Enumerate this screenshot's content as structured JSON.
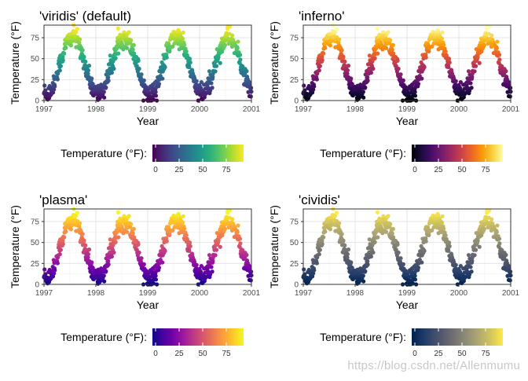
{
  "figure": {
    "watermark": "https://blog.csdn.net/Allenmumu"
  },
  "chart_data": [
    {
      "type": "scatter",
      "title": "'viridis' (default)",
      "palette": "viridis",
      "xlabel": "Year",
      "ylabel": "Temperature (°F)",
      "x_ticks": [
        "1997",
        "1998",
        "1999",
        "2000",
        "2001"
      ],
      "y_ticks": [
        "0",
        "25",
        "50",
        "75"
      ],
      "xlim": [
        1997.0,
        2001.0
      ],
      "ylim": [
        0,
        90
      ],
      "legend": {
        "title": "Temperature (°F):",
        "ticks": [
          "0",
          "25",
          "50",
          "75"
        ],
        "position": "bottom"
      },
      "colors": [
        "#440154",
        "#472d7b",
        "#3b528b",
        "#2c728e",
        "#21918c",
        "#28ae80",
        "#5ec962",
        "#addc30",
        "#fde725"
      ]
    },
    {
      "type": "scatter",
      "title": "'inferno'",
      "palette": "inferno",
      "xlabel": "Year",
      "ylabel": "Temperature (°F)",
      "x_ticks": [
        "1997",
        "1998",
        "1999",
        "2000",
        "2001"
      ],
      "y_ticks": [
        "0",
        "25",
        "50",
        "75"
      ],
      "xlim": [
        1997.0,
        2001.0
      ],
      "ylim": [
        0,
        90
      ],
      "legend": {
        "title": "Temperature (°F):",
        "ticks": [
          "0",
          "25",
          "50",
          "75"
        ],
        "position": "bottom"
      },
      "colors": [
        "#000004",
        "#1b0c41",
        "#4a0c6b",
        "#781c6d",
        "#a52c60",
        "#cf4446",
        "#ed6925",
        "#fb9b06",
        "#f7d13d",
        "#fcffa4"
      ]
    },
    {
      "type": "scatter",
      "title": "'plasma'",
      "palette": "plasma",
      "xlabel": "Year",
      "ylabel": "Temperature (°F)",
      "x_ticks": [
        "1997",
        "1998",
        "1999",
        "2000",
        "2001"
      ],
      "y_ticks": [
        "0",
        "25",
        "50",
        "75"
      ],
      "xlim": [
        1997.0,
        2001.0
      ],
      "ylim": [
        0,
        90
      ],
      "legend": {
        "title": "Temperature (°F):",
        "ticks": [
          "0",
          "25",
          "50",
          "75"
        ],
        "position": "bottom"
      },
      "colors": [
        "#0d0887",
        "#46039f",
        "#7201a8",
        "#9c179e",
        "#bd3786",
        "#d8576b",
        "#ed7953",
        "#fb9f3a",
        "#fdca26",
        "#f0f921"
      ]
    },
    {
      "type": "scatter",
      "title": "'cividis'",
      "palette": "cividis",
      "xlabel": "Year",
      "ylabel": "Temperature (°F)",
      "x_ticks": [
        "1997",
        "1998",
        "1999",
        "2000",
        "2001"
      ],
      "y_ticks": [
        "0",
        "25",
        "50",
        "75"
      ],
      "xlim": [
        1997.0,
        2001.0
      ],
      "ylim": [
        0,
        90
      ],
      "legend": {
        "title": "Temperature (°F):",
        "ticks": [
          "0",
          "25",
          "50",
          "75"
        ],
        "position": "bottom"
      },
      "colors": [
        "#00204d",
        "#213d6b",
        "#4a526b",
        "#6a6a70",
        "#898776",
        "#aba473",
        "#cfc25f",
        "#ffea46"
      ]
    }
  ],
  "series_model": {
    "description": "daily temperature readings, seasonal cycle",
    "annual_mean": 42,
    "annual_amplitude": 34,
    "peak_fraction_of_year": 0.55,
    "noise": 8,
    "min": 0,
    "max": 90
  }
}
